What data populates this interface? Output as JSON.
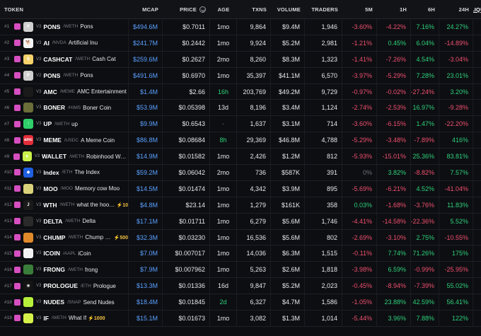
{
  "headers": {
    "token": "TOKEN",
    "mcap": "MCAP",
    "price": "PRICE",
    "age": "AGE",
    "txns": "TXNS",
    "volume": "VOLUME",
    "traders": "TRADERS",
    "m5": "5M",
    "h1": "1H",
    "h6": "6H",
    "h24": "24H",
    "liquidity": "LIQUIDITY",
    "sort_caret": "▼"
  },
  "colors": {
    "pin": "#d64fc0",
    "blue": "#5aa0ff",
    "green": "#2ed17a",
    "red": "#f0506e"
  },
  "rows": [
    {
      "rank": "#1",
      "ver": "V3",
      "sym": "PONS",
      "pair": "/WETH",
      "name": "Pons",
      "boost": "",
      "mcap": "$494.6M",
      "price": "$0.7011",
      "age": "1mo",
      "age_c": "",
      "txns": "9,864",
      "vol": "$9.4M",
      "trd": "1,946",
      "m5": "-3.60%",
      "m5c": "red",
      "h1": "-4.22%",
      "h1c": "red",
      "h6": "7.16%",
      "h6c": "green",
      "h24": "24.27%",
      "h24c": "green",
      "liq": "$6.5M",
      "logo": "#cfcfcf",
      "logo_t": "P"
    },
    {
      "rank": "#2",
      "ver": "V3",
      "sym": "AI",
      "pair": "/NVDA",
      "name": "Artificial Inu",
      "boost": "",
      "mcap": "$241.7M",
      "price": "$0.2442",
      "age": "1mo",
      "age_c": "",
      "txns": "9,924",
      "vol": "$5.2M",
      "trd": "2,981",
      "m5": "-1.21%",
      "m5c": "red",
      "h1": "0.45%",
      "h1c": "green",
      "h6": "6.04%",
      "h6c": "green",
      "h24": "-14.89%",
      "h24c": "red",
      "liq": "$5.7M",
      "logo": "#f4f4f4",
      "logo_t": "🐕"
    },
    {
      "rank": "#3",
      "ver": "V3",
      "sym": "CASHCAT",
      "pair": "/WETH",
      "name": "Cash Cat",
      "boost": "",
      "mcap": "$259.6M",
      "price": "$0.2627",
      "age": "2mo",
      "age_c": "",
      "txns": "8,260",
      "vol": "$8.3M",
      "trd": "1,323",
      "m5": "-1.41%",
      "m5c": "red",
      "h1": "-7.26%",
      "h1c": "red",
      "h6": "4.54%",
      "h6c": "green",
      "h24": "-3.04%",
      "h24c": "red",
      "liq": "$5.5M",
      "logo": "#f5d26b",
      "logo_t": "$"
    },
    {
      "rank": "#4",
      "ver": "V2",
      "sym": "PONS",
      "pair": "/WETH",
      "name": "Pons",
      "boost": "",
      "mcap": "$491.6M",
      "price": "$0.6970",
      "age": "1mo",
      "age_c": "",
      "txns": "35,397",
      "vol": "$41.1M",
      "trd": "6,570",
      "m5": "-3.97%",
      "m5c": "red",
      "h1": "-5.29%",
      "h1c": "red",
      "h6": "7.28%",
      "h6c": "green",
      "h24": "23.01%",
      "h24c": "green",
      "liq": "$3.4M",
      "logo": "#cfcfcf",
      "logo_t": "P"
    },
    {
      "rank": "#5",
      "ver": "V3",
      "sym": "AMC",
      "pair": "/MEME",
      "name": "AMC Entertainment",
      "boost": "",
      "mcap": "$1.4M",
      "price": "$2.66",
      "age": "16h",
      "age_c": "green",
      "txns": "203,769",
      "vol": "$49.2M",
      "trd": "9,729",
      "m5": "-0.97%",
      "m5c": "red",
      "h1": "-0.02%",
      "h1c": "red",
      "h6": "-27.24%",
      "h6c": "red",
      "h24": "3.20%",
      "h24c": "green",
      "liq": "$3.3M",
      "logo": "#1a1a1a",
      "logo_t": ""
    },
    {
      "rank": "#6",
      "ver": "V3",
      "sym": "BONER",
      "pair": "/HIMS",
      "name": "Boner Coin",
      "boost": "",
      "mcap": "$53.9M",
      "price": "$0.05398",
      "age": "13d",
      "age_c": "",
      "txns": "8,196",
      "vol": "$3.4M",
      "trd": "1,124",
      "m5": "-2.74%",
      "m5c": "red",
      "h1": "-2.53%",
      "h1c": "red",
      "h6": "16.97%",
      "h6c": "green",
      "h24": "-9.28%",
      "h24c": "red",
      "liq": "$2.4M",
      "logo": "#6b6d3a",
      "logo_t": ""
    },
    {
      "rank": "#7",
      "ver": "V3",
      "sym": "UP",
      "pair": "/WETH",
      "name": "up",
      "boost": "",
      "mcap": "$9.9M",
      "price": "$0.6543",
      "age": "-",
      "age_c": "grey",
      "txns": "1,637",
      "vol": "$3.1M",
      "trd": "714",
      "m5": "-3.60%",
      "m5c": "red",
      "h1": "-6.15%",
      "h1c": "red",
      "h6": "1.47%",
      "h6c": "green",
      "h24": "-22.20%",
      "h24c": "red",
      "liq": "$2.0M",
      "logo": "#2ecf6a",
      "logo_t": "↑"
    },
    {
      "rank": "#8",
      "ver": "V3",
      "sym": "MEME",
      "pair": "/USDC",
      "name": "A Meme Coin",
      "boost": "",
      "mcap": "$86.8M",
      "price": "$0.08684",
      "age": "8h",
      "age_c": "green",
      "txns": "29,369",
      "vol": "$46.8M",
      "trd": "4,788",
      "m5": "-5.29%",
      "m5c": "red",
      "h1": "-3.48%",
      "h1c": "red",
      "h6": "-7.89%",
      "h6c": "red",
      "h24": "416%",
      "h24c": "green",
      "liq": "$1.4M",
      "logo": "#e32e3a",
      "logo_t": "amc"
    },
    {
      "rank": "#9",
      "ver": "V3",
      "sym": "WALLET",
      "pair": "/WETH",
      "name": "Robinhood Walle",
      "boost": "",
      "mcap": "$14.9M",
      "price": "$0.01582",
      "age": "1mo",
      "age_c": "",
      "txns": "2,426",
      "vol": "$1.2M",
      "trd": "812",
      "m5": "-5.93%",
      "m5c": "red",
      "h1": "-15.01%",
      "h1c": "red",
      "h6": "25.36%",
      "h6c": "green",
      "h24": "83.81%",
      "h24c": "green",
      "liq": "$1.2M",
      "logo": "#c8f04a",
      "logo_t": "✦"
    },
    {
      "rank": "#10",
      "ver": "V3",
      "sym": "Index",
      "pair": "/ETH",
      "name": "The Index",
      "boost": "",
      "mcap": "$59.2M",
      "price": "$0.06042",
      "age": "2mo",
      "age_c": "",
      "txns": "736",
      "vol": "$587K",
      "trd": "391",
      "m5": "0%",
      "m5c": "grey",
      "h1": "3.82%",
      "h1c": "green",
      "h6": "-8.82%",
      "h6c": "red",
      "h24": "7.57%",
      "h24c": "green",
      "liq": "$1.2M",
      "logo": "#1f5fe0",
      "logo_t": "◆"
    },
    {
      "rank": "#11",
      "ver": "V3",
      "sym": "MOO",
      "pair": "/MOO",
      "name": "Memory cow Moo",
      "boost": "",
      "mcap": "$14.5M",
      "price": "$0.01474",
      "age": "1mo",
      "age_c": "",
      "txns": "4,342",
      "vol": "$3.9M",
      "trd": "895",
      "m5": "-5.69%",
      "m5c": "red",
      "h1": "-6.21%",
      "h1c": "red",
      "h6": "4.52%",
      "h6c": "green",
      "h24": "-41.04%",
      "h24c": "red",
      "liq": "$1.1M",
      "logo": "#d9d27a",
      "logo_t": ""
    },
    {
      "rank": "#12",
      "ver": "V3",
      "sym": "WTH",
      "pair": "/WETH",
      "name": "what the hook?",
      "boost": "⚡10",
      "mcap": "$4.8M",
      "price": "$23.14",
      "age": "1mo",
      "age_c": "",
      "txns": "1,279",
      "vol": "$161K",
      "trd": "358",
      "m5": "0.03%",
      "m5c": "green",
      "h1": "-1.68%",
      "h1c": "red",
      "h6": "-3.76%",
      "h6c": "red",
      "h24": "11.83%",
      "h24c": "green",
      "liq": "$1.1M",
      "logo": "#1a1a1a",
      "logo_t": "J"
    },
    {
      "rank": "#13",
      "ver": "V3",
      "sym": "DELTA",
      "pair": "/WETH",
      "name": "Delta",
      "boost": "",
      "mcap": "$17.1M",
      "price": "$0.01711",
      "age": "1mo",
      "age_c": "",
      "txns": "6,279",
      "vol": "$5.6M",
      "trd": "1,746",
      "m5": "-4.41%",
      "m5c": "red",
      "h1": "-14.58%",
      "h1c": "red",
      "h6": "-22.36%",
      "h6c": "red",
      "h24": "5.52%",
      "h24c": "green",
      "liq": "$1.0M",
      "logo": "#2a2a2a",
      "logo_t": ""
    },
    {
      "rank": "#14",
      "ver": "V3",
      "sym": "CHUMP",
      "pair": "/WETH",
      "name": "Chump Co",
      "boost": "⚡500",
      "mcap": "$32.3M",
      "price": "$0.03230",
      "age": "1mo",
      "age_c": "",
      "txns": "16,536",
      "vol": "$5.6M",
      "trd": "802",
      "m5": "-2.69%",
      "m5c": "red",
      "h1": "-3.10%",
      "h1c": "red",
      "h6": "2.75%",
      "h6c": "green",
      "h24": "-10.55%",
      "h24c": "red",
      "liq": "$1.0M",
      "logo": "#e08a2a",
      "logo_t": ""
    },
    {
      "rank": "#15",
      "ver": "V3",
      "sym": "ICOIN",
      "pair": "/AAPL",
      "name": "iCoin",
      "boost": "",
      "mcap": "$7.0M",
      "price": "$0.007017",
      "age": "1mo",
      "age_c": "",
      "txns": "14,036",
      "vol": "$6.3M",
      "trd": "1,515",
      "m5": "-0.11%",
      "m5c": "red",
      "h1": "7.74%",
      "h1c": "green",
      "h6": "71.26%",
      "h6c": "green",
      "h24": "175%",
      "h24c": "green",
      "liq": "$774K",
      "logo": "#f2f2f2",
      "logo_t": ""
    },
    {
      "rank": "#16",
      "ver": "V3",
      "sym": "FRONG",
      "pair": "/WETH",
      "name": "frong",
      "boost": "",
      "mcap": "$7.9M",
      "price": "$0.007962",
      "age": "1mo",
      "age_c": "",
      "txns": "5,263",
      "vol": "$2.6M",
      "trd": "1,818",
      "m5": "-3.98%",
      "m5c": "red",
      "h1": "6.59%",
      "h1c": "green",
      "h6": "-0.99%",
      "h6c": "red",
      "h24": "-25.95%",
      "h24c": "red",
      "liq": "$767K",
      "logo": "#3a7d3a",
      "logo_t": ""
    },
    {
      "rank": "#17",
      "ver": "V3",
      "sym": "PROLOGUE",
      "pair": "/ETH",
      "name": "Prologue",
      "boost": "",
      "mcap": "$13.3M",
      "price": "$0.01336",
      "age": "16d",
      "age_c": "",
      "txns": "9,847",
      "vol": "$5.2M",
      "trd": "2,023",
      "m5": "-0.45%",
      "m5c": "red",
      "h1": "-8.94%",
      "h1c": "red",
      "h6": "-7.39%",
      "h6c": "red",
      "h24": "55.02%",
      "h24c": "green",
      "liq": "$747K",
      "logo": "#141414",
      "logo_t": "✳"
    },
    {
      "rank": "#18",
      "ver": "V3",
      "sym": "NUDES",
      "pair": "/SNAP",
      "name": "Send Nudes",
      "boost": "",
      "mcap": "$18.4M",
      "price": "$0.01845",
      "age": "2d",
      "age_c": "green",
      "txns": "6,327",
      "vol": "$4.7M",
      "trd": "1,586",
      "m5": "-1.05%",
      "m5c": "red",
      "h1": "23.88%",
      "h1c": "green",
      "h6": "42.59%",
      "h6c": "green",
      "h24": "56.41%",
      "h24c": "green",
      "liq": "$563K",
      "logo": "#b6f03a",
      "logo_t": ""
    },
    {
      "rank": "#19",
      "ver": "V3",
      "sym": "IF",
      "pair": "/WETH",
      "name": "What If",
      "boost": "⚡1000",
      "mcap": "$15.1M",
      "price": "$0.01673",
      "age": "1mo",
      "age_c": "",
      "txns": "3,082",
      "vol": "$1.3M",
      "trd": "1,014",
      "m5": "-5.44%",
      "m5c": "red",
      "h1": "3.96%",
      "h1c": "green",
      "h6": "7.88%",
      "h6c": "green",
      "h24": "122%",
      "h24c": "green",
      "liq": "$551K",
      "logo": "#d6f04a",
      "logo_t": ""
    }
  ]
}
